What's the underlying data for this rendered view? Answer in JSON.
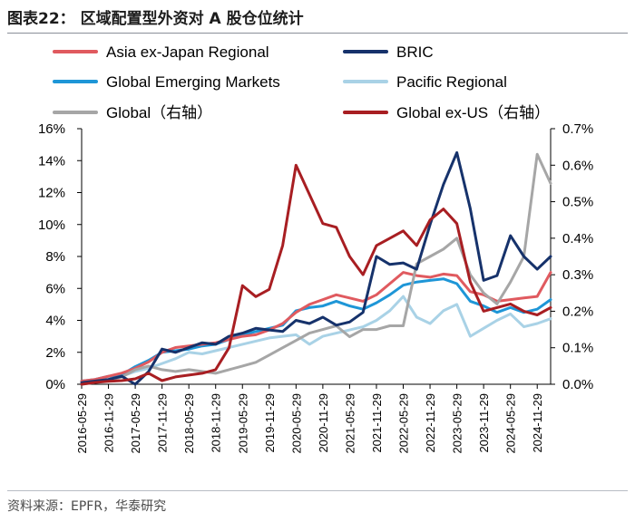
{
  "header": {
    "title": "图表22：  区域配置型外资对 A 股仓位统计"
  },
  "footer": {
    "source": "资料来源：EPFR，华泰研究"
  },
  "chart_data": {
    "type": "line",
    "title": "区域配置型外资对 A 股仓位统计",
    "x": [
      "2016-05-29",
      "2016-08-29",
      "2016-11-29",
      "2017-02-28",
      "2017-05-29",
      "2017-08-29",
      "2017-11-29",
      "2018-02-28",
      "2018-05-29",
      "2018-08-29",
      "2018-11-29",
      "2019-02-28",
      "2019-05-29",
      "2019-08-29",
      "2019-11-29",
      "2020-02-29",
      "2020-05-29",
      "2020-08-29",
      "2020-11-29",
      "2021-02-28",
      "2021-05-29",
      "2021-08-29",
      "2021-11-29",
      "2022-02-28",
      "2022-05-29",
      "2022-08-29",
      "2022-11-29",
      "2023-02-28",
      "2023-05-29",
      "2023-08-29",
      "2023-11-29",
      "2024-02-29",
      "2024-05-29",
      "2024-08-29",
      "2024-11-29",
      "2025-02-28"
    ],
    "x_tick_labels": [
      "2016-05-29",
      "2016-11-29",
      "2017-05-29",
      "2017-11-29",
      "2018-05-29",
      "2018-11-29",
      "2019-05-29",
      "2019-11-29",
      "2020-05-29",
      "2020-11-29",
      "2021-05-29",
      "2021-11-29",
      "2022-05-29",
      "2022-11-29",
      "2023-05-29",
      "2023-11-29",
      "2024-05-29",
      "2024-11-29"
    ],
    "y_left": {
      "range": [
        0,
        16
      ],
      "tick_labels": [
        "0%",
        "2%",
        "4%",
        "6%",
        "8%",
        "10%",
        "12%",
        "14%",
        "16%"
      ]
    },
    "y_right": {
      "range": [
        0,
        0.7
      ],
      "tick_labels": [
        "0.0%",
        "0.1%",
        "0.2%",
        "0.3%",
        "0.4%",
        "0.5%",
        "0.6%",
        "0.7%"
      ]
    },
    "legend_position": "top",
    "series": [
      {
        "name": "Asia ex-Japan Regional",
        "axis": "left",
        "color": "#e05a5f",
        "values": [
          0.2,
          0.3,
          0.5,
          0.7,
          1.0,
          1.4,
          2.0,
          2.3,
          2.4,
          2.5,
          2.6,
          2.8,
          3.0,
          3.1,
          3.4,
          3.8,
          4.5,
          5.0,
          5.3,
          5.6,
          5.4,
          5.2,
          5.6,
          6.3,
          7.0,
          6.8,
          6.7,
          6.9,
          6.8,
          5.8,
          5.6,
          5.2,
          5.3,
          5.4,
          5.5,
          7.0
        ]
      },
      {
        "name": "BRIC",
        "axis": "left",
        "color": "#16326b",
        "values": [
          0.1,
          0.2,
          0.3,
          0.5,
          0.0,
          0.8,
          2.2,
          2.0,
          2.3,
          2.6,
          2.5,
          3.0,
          3.2,
          3.5,
          3.4,
          3.3,
          4.0,
          3.8,
          4.2,
          3.7,
          3.9,
          4.5,
          8.0,
          7.5,
          7.6,
          7.2,
          10.0,
          12.5,
          14.5,
          11.0,
          6.5,
          6.8,
          9.3,
          8.0,
          7.2,
          8.0
        ]
      },
      {
        "name": "Global Emerging Markets",
        "axis": "left",
        "color": "#1e96d7",
        "values": [
          0.2,
          0.3,
          0.5,
          0.6,
          1.1,
          1.5,
          2.0,
          2.1,
          2.2,
          2.4,
          2.5,
          2.8,
          3.1,
          3.3,
          3.5,
          3.7,
          4.6,
          4.8,
          4.9,
          5.2,
          4.9,
          4.7,
          5.1,
          5.6,
          6.2,
          6.4,
          6.5,
          6.6,
          6.3,
          5.2,
          4.9,
          4.5,
          4.8,
          4.5,
          4.7,
          5.3
        ]
      },
      {
        "name": "Pacific Regional",
        "axis": "left",
        "color": "#a9d2e6",
        "values": [
          0.1,
          0.2,
          0.3,
          0.5,
          0.8,
          1.0,
          1.3,
          1.6,
          2.0,
          1.9,
          2.1,
          2.3,
          2.5,
          2.7,
          2.9,
          3.0,
          3.1,
          2.5,
          3.0,
          3.2,
          3.4,
          3.6,
          4.0,
          4.6,
          5.5,
          4.2,
          3.8,
          4.6,
          5.0,
          3.0,
          3.5,
          4.0,
          4.4,
          3.6,
          3.8,
          4.1
        ]
      },
      {
        "name": "Global（右轴）",
        "axis": "right",
        "color": "#a6a6a6",
        "values": [
          0.0,
          0.005,
          0.01,
          0.02,
          0.04,
          0.05,
          0.04,
          0.035,
          0.04,
          0.035,
          0.03,
          0.04,
          0.05,
          0.06,
          0.08,
          0.1,
          0.12,
          0.14,
          0.15,
          0.16,
          0.13,
          0.15,
          0.15,
          0.16,
          0.16,
          0.33,
          0.35,
          0.37,
          0.4,
          0.3,
          0.25,
          0.22,
          0.28,
          0.35,
          0.63,
          0.55
        ]
      },
      {
        "name": "Global ex-US（右轴）",
        "axis": "right",
        "color": "#a81e22",
        "values": [
          0.0,
          0.005,
          0.008,
          0.01,
          0.015,
          0.03,
          0.01,
          0.02,
          0.025,
          0.03,
          0.04,
          0.1,
          0.27,
          0.24,
          0.26,
          0.38,
          0.6,
          0.52,
          0.44,
          0.43,
          0.35,
          0.3,
          0.38,
          0.4,
          0.42,
          0.38,
          0.45,
          0.48,
          0.44,
          0.28,
          0.2,
          0.21,
          0.22,
          0.2,
          0.19,
          0.21
        ]
      }
    ]
  }
}
